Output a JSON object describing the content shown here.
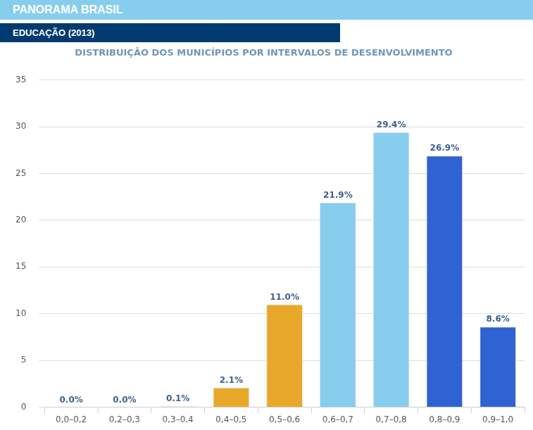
{
  "header": {
    "banner": "PANORAMA BRASIL",
    "section": "EDUCAÇÃO (2013)"
  },
  "chart_data": {
    "type": "bar",
    "title": "DISTRIBUIÇÃO DOS MUNICÍPIOS POR INTERVALOS DE DESENVOLVIMENTO",
    "categories": [
      "0,0–0,2",
      "0,2–0,3",
      "0,3–0,4",
      "0,4–0,5",
      "0,5–0,6",
      "0,6–0,7",
      "0,7–0,8",
      "0,8–0,9",
      "0,9–1,0"
    ],
    "values": [
      0.0,
      0.0,
      0.1,
      2.1,
      11.0,
      21.9,
      29.4,
      26.9,
      8.6
    ],
    "value_labels": [
      "0.0%",
      "0.0%",
      "0.1%",
      "2.1%",
      "11.0%",
      "21.9%",
      "29.4%",
      "26.9%",
      "8.6%"
    ],
    "colors": [
      "#e8a82a",
      "#e8a82a",
      "#c9c9c9",
      "#e8a82a",
      "#e8a82a",
      "#87cdee",
      "#87cdee",
      "#2f62d2",
      "#2f62d2"
    ],
    "ylim": [
      0,
      35
    ],
    "yticks": [
      0,
      5,
      10,
      15,
      20,
      25,
      30,
      35
    ],
    "grid": true,
    "data_labels": true
  }
}
